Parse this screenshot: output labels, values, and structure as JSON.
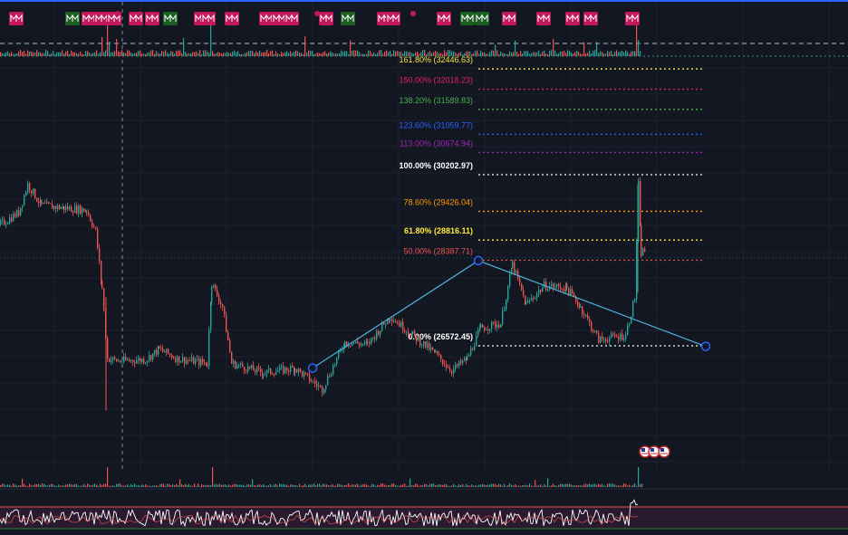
{
  "chart_data": {
    "type": "candlestick",
    "price_range": [
      25000,
      33400
    ],
    "grid": true,
    "colors": {
      "background": "#131722",
      "grid": "#1e222d",
      "up": "#26a69a",
      "down": "#ef5350",
      "trendline": "#4fb4d8",
      "marker_red": "#c2185b",
      "marker_green": "#1b5e20",
      "oscillator_line": "#ffffff",
      "oscillator_band": "#2a1a30",
      "top_line": "#2962ff"
    },
    "fibonacci_levels": [
      {
        "ratio_label": "161.80%",
        "price": 32446.63,
        "price_label": "(32446.63)",
        "color": "#f5e642",
        "bold": false
      },
      {
        "ratio_label": "150.00%",
        "price": 32018.23,
        "price_label": "(32018.23)",
        "color": "#e91e63",
        "bold": false
      },
      {
        "ratio_label": "138.20%",
        "price": 31589.83,
        "price_label": "(31589.83)",
        "color": "#4caf50",
        "bold": false
      },
      {
        "ratio_label": "123.60%",
        "price": 31059.77,
        "price_label": "(31059.77)",
        "color": "#2962ff",
        "bold": false
      },
      {
        "ratio_label": "113.00%",
        "price": 30674.94,
        "price_label": "(30674.94)",
        "color": "#9c27b0",
        "bold": false
      },
      {
        "ratio_label": "100.00%",
        "price": 30202.97,
        "price_label": "(30202.97)",
        "color": "#ffffff",
        "bold": true
      },
      {
        "ratio_label": "78.60%",
        "price": 29426.04,
        "price_label": "(29426.04)",
        "color": "#ff9800",
        "bold": false
      },
      {
        "ratio_label": "61.80%",
        "price": 28816.11,
        "price_label": "(28816.11)",
        "color": "#ffeb3b",
        "bold": true
      },
      {
        "ratio_label": "50.00%",
        "price": 28387.71,
        "price_label": "(28387.71)",
        "color": "#ef5350",
        "bold": false
      },
      {
        "ratio_label": "0.00%",
        "price": 26572.45,
        "price_label": "(26572.45)",
        "color": "#ffffff",
        "bold": true
      }
    ],
    "trendline_points": [
      {
        "bar": 345,
        "price": 26100
      },
      {
        "bar": 528,
        "price": 28380
      },
      {
        "bar": 779,
        "price": 26560
      }
    ],
    "price_path": [
      {
        "bar": 0,
        "price": 29150
      },
      {
        "bar": 20,
        "price": 29400
      },
      {
        "bar": 30,
        "price": 30000
      },
      {
        "bar": 45,
        "price": 29550
      },
      {
        "bar": 70,
        "price": 29500
      },
      {
        "bar": 95,
        "price": 29450
      },
      {
        "bar": 105,
        "price": 29000
      },
      {
        "bar": 112,
        "price": 27800
      },
      {
        "bar": 118,
        "price": 26300
      },
      {
        "bar": 130,
        "price": 26250
      },
      {
        "bar": 160,
        "price": 26280
      },
      {
        "bar": 175,
        "price": 26500
      },
      {
        "bar": 195,
        "price": 26300
      },
      {
        "bar": 228,
        "price": 26200
      },
      {
        "bar": 233,
        "price": 27900
      },
      {
        "bar": 245,
        "price": 27400
      },
      {
        "bar": 255,
        "price": 26200
      },
      {
        "bar": 290,
        "price": 26000
      },
      {
        "bar": 325,
        "price": 26100
      },
      {
        "bar": 355,
        "price": 25650
      },
      {
        "bar": 380,
        "price": 26650
      },
      {
        "bar": 405,
        "price": 26600
      },
      {
        "bar": 430,
        "price": 27200
      },
      {
        "bar": 455,
        "price": 26800
      },
      {
        "bar": 480,
        "price": 26400
      },
      {
        "bar": 498,
        "price": 26050
      },
      {
        "bar": 515,
        "price": 26300
      },
      {
        "bar": 530,
        "price": 26950
      },
      {
        "bar": 552,
        "price": 27050
      },
      {
        "bar": 565,
        "price": 28300
      },
      {
        "bar": 580,
        "price": 27450
      },
      {
        "bar": 600,
        "price": 27850
      },
      {
        "bar": 625,
        "price": 27800
      },
      {
        "bar": 640,
        "price": 27400
      },
      {
        "bar": 660,
        "price": 26700
      },
      {
        "bar": 690,
        "price": 26800
      },
      {
        "bar": 700,
        "price": 27600
      },
      {
        "bar": 704,
        "price": 30000
      },
      {
        "bar": 707,
        "price": 28550
      },
      {
        "bar": 712,
        "price": 28600
      }
    ]
  }
}
